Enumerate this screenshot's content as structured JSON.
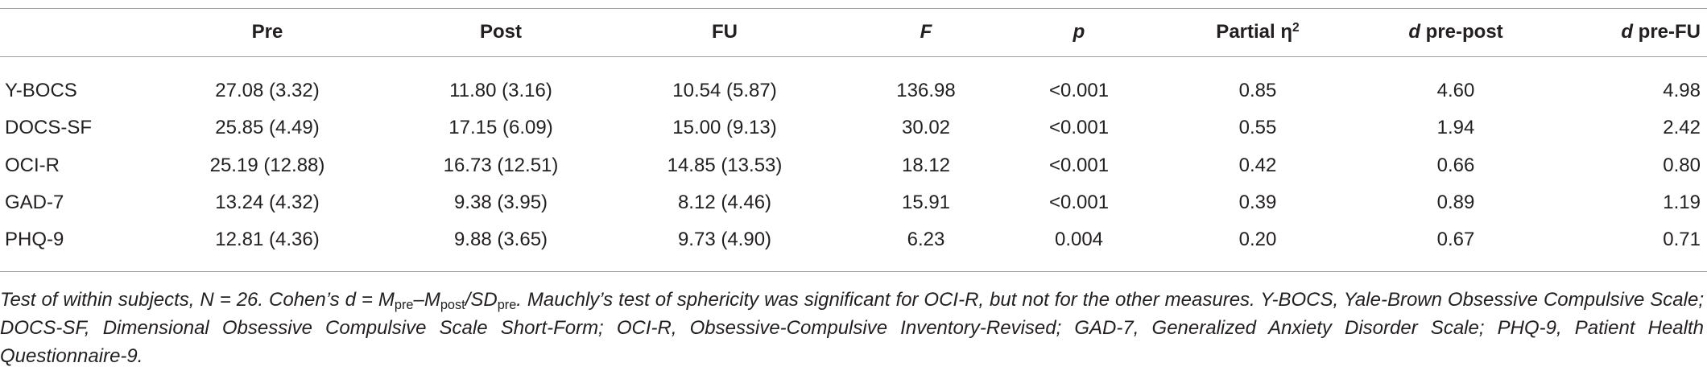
{
  "table": {
    "header": [
      [
        {
          "text": "Pre"
        }
      ],
      [
        {
          "text": "Post"
        }
      ],
      [
        {
          "text": "FU"
        }
      ],
      [
        {
          "text": "F",
          "italic": true
        }
      ],
      [
        {
          "text": "p",
          "italic": true
        }
      ],
      [
        {
          "text": "Partial η"
        },
        {
          "text": "2",
          "sup": true
        }
      ],
      [
        {
          "text": "d",
          "italic": true
        },
        {
          "text": " pre-post"
        }
      ],
      [
        {
          "text": "d",
          "italic": true
        },
        {
          "text": " pre-FU"
        }
      ]
    ],
    "rows": [
      {
        "label": "Y-BOCS",
        "cells": [
          "27.08 (3.32)",
          "11.80 (3.16)",
          "10.54 (5.87)",
          "136.98",
          "<0.001",
          "0.85",
          "4.60",
          "4.98"
        ]
      },
      {
        "label": "DOCS-SF",
        "cells": [
          "25.85 (4.49)",
          "17.15 (6.09)",
          "15.00 (9.13)",
          "30.02",
          "<0.001",
          "0.55",
          "1.94",
          "2.42"
        ]
      },
      {
        "label": "OCI-R",
        "cells": [
          "25.19 (12.88)",
          "16.73 (12.51)",
          "14.85 (13.53)",
          "18.12",
          "<0.001",
          "0.42",
          "0.66",
          "0.80"
        ]
      },
      {
        "label": "GAD-7",
        "cells": [
          "13.24 (4.32)",
          "9.38 (3.95)",
          "8.12 (4.46)",
          "15.91",
          "<0.001",
          "0.39",
          "0.89",
          "1.19"
        ]
      },
      {
        "label": "PHQ-9",
        "cells": [
          "12.81 (4.36)",
          "9.88 (3.65)",
          "9.73 (4.90)",
          "6.23",
          "0.004",
          "0.20",
          "0.67",
          "0.71"
        ]
      }
    ]
  },
  "footnote": [
    {
      "text": "Test of within subjects, N = 26. Cohen’s d = M"
    },
    {
      "text": "pre",
      "sub": true
    },
    {
      "text": "–M"
    },
    {
      "text": "post",
      "sub": true
    },
    {
      "text": "/SD"
    },
    {
      "text": "pre",
      "sub": true
    },
    {
      "text": ". Mauchly’s test of sphericity was significant for OCI-R, but not for the other measures. Y-BOCS, Yale-Brown Obsessive Compulsive Scale; DOCS-SF, Dimensional Obsessive Compulsive Scale Short-Form; OCI-R, Obsessive-Compulsive Inventory-Revised; GAD-7, Generalized Anxiety Disorder Scale; PHQ-9, Patient Health Questionnaire-9."
    }
  ]
}
